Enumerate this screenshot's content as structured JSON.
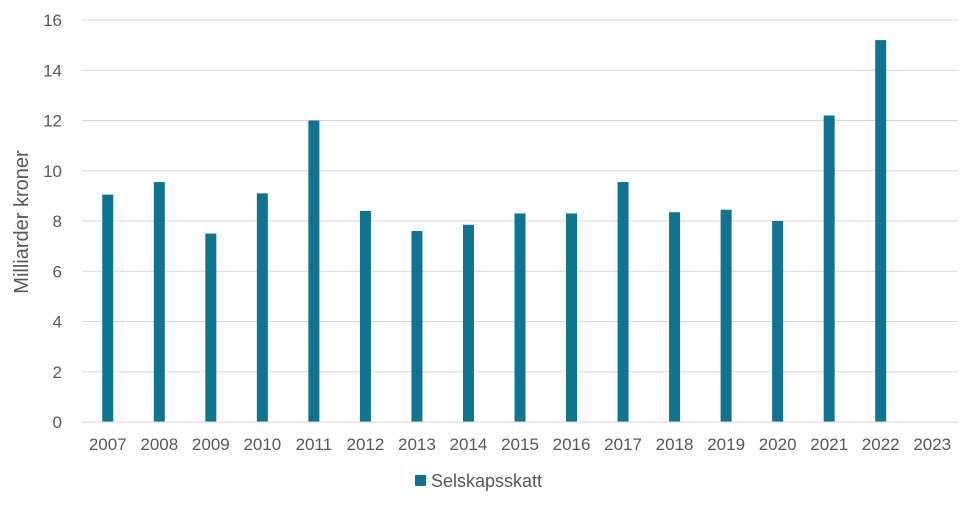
{
  "chart_data": {
    "type": "bar",
    "ylabel": "Milliarder kroner",
    "xlabel": "",
    "ylim": [
      0,
      16
    ],
    "yticks": [
      0,
      2,
      4,
      6,
      8,
      10,
      12,
      14,
      16
    ],
    "grid": true,
    "legend_position": "bottom",
    "categories": [
      "2007",
      "2008",
      "2009",
      "2010",
      "2011",
      "2012",
      "2013",
      "2014",
      "2015",
      "2016",
      "2017",
      "2018",
      "2019",
      "2020",
      "2021",
      "2022",
      "2023"
    ],
    "series": [
      {
        "name": "Selskapsskatt",
        "color": "#0e7490",
        "values": [
          9.05,
          9.55,
          7.5,
          9.1,
          12.0,
          8.4,
          7.6,
          7.85,
          8.3,
          8.3,
          9.55,
          8.35,
          8.45,
          8.0,
          12.2,
          15.2,
          null
        ]
      }
    ]
  }
}
